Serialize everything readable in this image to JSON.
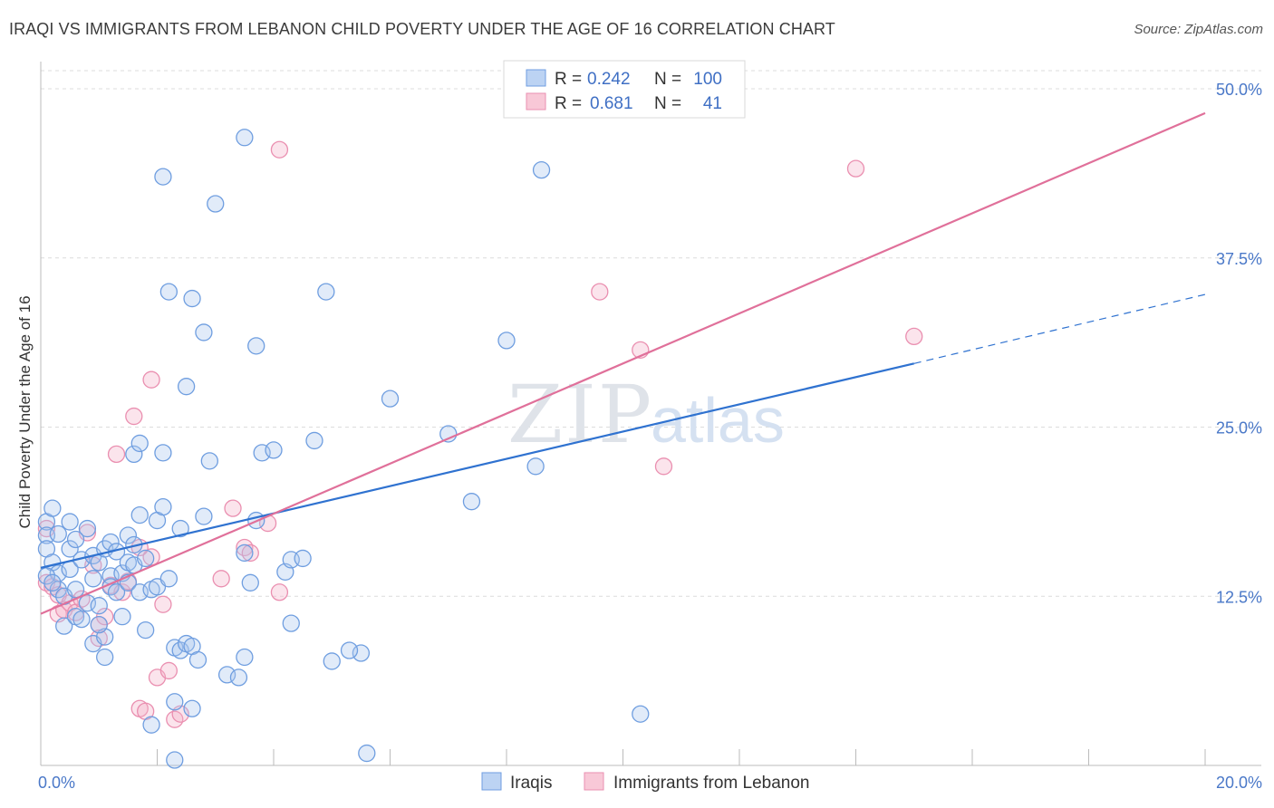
{
  "title": "IRAQI VS IMMIGRANTS FROM LEBANON CHILD POVERTY UNDER THE AGE OF 16 CORRELATION CHART",
  "source": "Source: ZipAtlas.com",
  "watermark": "ZIPatlas",
  "colors": {
    "iraqis": "#6f9ee0",
    "lebanon": "#ea8fb0",
    "iraqis_line": "#2f72d0",
    "lebanon_line": "#e0709a",
    "tick": "#4a78c8"
  },
  "legend": {
    "r_label": "R =",
    "n_label": "N =",
    "rows": [
      {
        "r": "0.242",
        "n": "100"
      },
      {
        "r": "0.681",
        "n": "41"
      }
    ]
  },
  "chart_data": {
    "type": "scatter",
    "title": "IRAQI VS IMMIGRANTS FROM LEBANON CHILD POVERTY UNDER THE AGE OF 16 CORRELATION CHART",
    "xlabel": "",
    "ylabel": "Child Poverty Under the Age of 16",
    "xlim": [
      0,
      20
    ],
    "ylim": [
      0,
      50
    ],
    "x_tick_labels": [
      "0.0%",
      "20.0%"
    ],
    "y_tick_labels": [
      "12.5%",
      "25.0%",
      "37.5%",
      "50.0%"
    ],
    "y_ticks": [
      12.5,
      25.0,
      37.5,
      50.0
    ],
    "grid": true,
    "legend_position": "top-center",
    "series": [
      {
        "name": "Iraqis",
        "r": 0.242,
        "n": 100,
        "trend": {
          "x0": 0,
          "y0": 14.6,
          "x1": 15,
          "y1": 29.7,
          "dash_to_x": 20,
          "dash_to_y": 34.8
        },
        "points": [
          [
            0.1,
            18.0
          ],
          [
            0.1,
            17.0
          ],
          [
            0.1,
            16.0
          ],
          [
            0.2,
            19.0
          ],
          [
            0.2,
            15.0
          ],
          [
            0.3,
            14.2
          ],
          [
            0.3,
            17.1
          ],
          [
            0.3,
            13.0
          ],
          [
            0.4,
            12.5
          ],
          [
            0.4,
            10.3
          ],
          [
            0.5,
            18.0
          ],
          [
            0.5,
            16.0
          ],
          [
            0.5,
            14.5
          ],
          [
            0.6,
            13.0
          ],
          [
            0.6,
            11.0
          ],
          [
            0.7,
            15.2
          ],
          [
            0.7,
            10.8
          ],
          [
            0.8,
            17.5
          ],
          [
            0.8,
            12.0
          ],
          [
            0.9,
            15.5
          ],
          [
            0.9,
            13.8
          ],
          [
            0.9,
            9.0
          ],
          [
            1.0,
            15.0
          ],
          [
            1.0,
            11.8
          ],
          [
            1.1,
            16.0
          ],
          [
            1.1,
            8.0
          ],
          [
            1.1,
            9.5
          ],
          [
            1.2,
            14.0
          ],
          [
            1.2,
            13.2
          ],
          [
            1.2,
            16.5
          ],
          [
            1.3,
            15.8
          ],
          [
            1.3,
            12.8
          ],
          [
            1.4,
            14.2
          ],
          [
            1.4,
            11.0
          ],
          [
            1.5,
            13.5
          ],
          [
            1.5,
            15.0
          ],
          [
            1.5,
            17.0
          ],
          [
            1.6,
            16.3
          ],
          [
            1.6,
            14.8
          ],
          [
            1.6,
            23.0
          ],
          [
            1.7,
            12.8
          ],
          [
            1.7,
            18.5
          ],
          [
            1.7,
            23.8
          ],
          [
            1.8,
            15.3
          ],
          [
            1.8,
            10.0
          ],
          [
            1.9,
            13.0
          ],
          [
            1.9,
            3.0
          ],
          [
            2.0,
            13.2
          ],
          [
            2.0,
            18.1
          ],
          [
            2.1,
            19.1
          ],
          [
            2.1,
            23.1
          ],
          [
            2.1,
            43.5
          ],
          [
            2.2,
            35.0
          ],
          [
            2.2,
            13.8
          ],
          [
            2.3,
            8.7
          ],
          [
            2.3,
            4.7
          ],
          [
            2.4,
            17.5
          ],
          [
            2.4,
            8.5
          ],
          [
            2.5,
            9.0
          ],
          [
            2.5,
            28.0
          ],
          [
            2.6,
            34.5
          ],
          [
            2.6,
            8.8
          ],
          [
            2.6,
            4.2
          ],
          [
            2.7,
            7.8
          ],
          [
            2.8,
            32.0
          ],
          [
            2.9,
            22.5
          ],
          [
            3.0,
            41.5
          ],
          [
            3.2,
            6.7
          ],
          [
            3.4,
            6.5
          ],
          [
            3.5,
            15.7
          ],
          [
            3.5,
            8.0
          ],
          [
            3.6,
            13.5
          ],
          [
            3.7,
            31.0
          ],
          [
            3.7,
            18.1
          ],
          [
            3.8,
            23.1
          ],
          [
            4.0,
            23.3
          ],
          [
            4.2,
            14.3
          ],
          [
            4.3,
            15.2
          ],
          [
            4.3,
            10.5
          ],
          [
            4.5,
            15.3
          ],
          [
            4.7,
            24.0
          ],
          [
            4.9,
            35.0
          ],
          [
            5.0,
            7.7
          ],
          [
            5.5,
            8.3
          ],
          [
            5.3,
            8.5
          ],
          [
            6.0,
            27.1
          ],
          [
            7.0,
            24.5
          ],
          [
            7.4,
            19.5
          ],
          [
            8.0,
            31.4
          ],
          [
            8.5,
            22.1
          ],
          [
            8.6,
            44.0
          ],
          [
            10.3,
            3.8
          ],
          [
            0.1,
            14.0
          ],
          [
            0.2,
            13.5
          ],
          [
            2.3,
            0.4
          ],
          [
            0.6,
            16.7
          ],
          [
            1.0,
            10.4
          ],
          [
            3.5,
            46.4
          ],
          [
            2.8,
            18.4
          ],
          [
            5.6,
            0.9
          ]
        ]
      },
      {
        "name": "Immigrants from Lebanon",
        "r": 0.681,
        "n": 41,
        "trend": {
          "x0": 0,
          "y0": 11.2,
          "x1": 20,
          "y1": 48.2
        },
        "points": [
          [
            0.1,
            13.5
          ],
          [
            0.2,
            13.2
          ],
          [
            0.3,
            12.6
          ],
          [
            0.3,
            11.2
          ],
          [
            0.4,
            11.5
          ],
          [
            0.5,
            12.0
          ],
          [
            0.6,
            11.3
          ],
          [
            0.7,
            12.3
          ],
          [
            0.8,
            17.2
          ],
          [
            0.9,
            14.8
          ],
          [
            1.0,
            10.4
          ],
          [
            1.0,
            9.4
          ],
          [
            1.1,
            11.0
          ],
          [
            1.2,
            13.3
          ],
          [
            1.3,
            23.0
          ],
          [
            1.4,
            12.8
          ],
          [
            1.5,
            13.6
          ],
          [
            1.6,
            25.8
          ],
          [
            1.7,
            4.2
          ],
          [
            1.8,
            4.0
          ],
          [
            1.9,
            28.5
          ],
          [
            1.9,
            15.4
          ],
          [
            2.0,
            6.5
          ],
          [
            2.1,
            11.9
          ],
          [
            2.2,
            7.0
          ],
          [
            2.3,
            3.4
          ],
          [
            2.4,
            3.8
          ],
          [
            3.1,
            13.8
          ],
          [
            3.3,
            19.0
          ],
          [
            3.5,
            16.1
          ],
          [
            3.6,
            15.7
          ],
          [
            3.9,
            17.9
          ],
          [
            4.1,
            12.8
          ],
          [
            4.1,
            45.5
          ],
          [
            9.6,
            35.0
          ],
          [
            10.3,
            30.7
          ],
          [
            10.7,
            22.1
          ],
          [
            14.0,
            44.1
          ],
          [
            15.0,
            31.7
          ],
          [
            0.1,
            17.5
          ],
          [
            1.7,
            16.1
          ]
        ]
      }
    ]
  },
  "bottom_legend": {
    "iraqis": "Iraqis",
    "lebanon": "Immigrants from Lebanon"
  }
}
